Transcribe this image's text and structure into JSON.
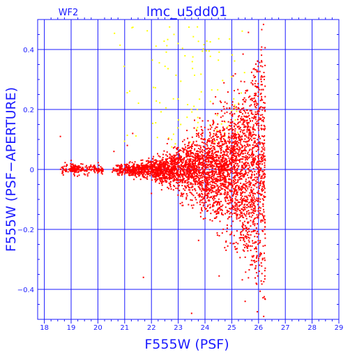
{
  "chart_data": {
    "type": "scatter",
    "title": "lmc_u5dd01",
    "subtitle": "WF2",
    "xlabel": "F555W (PSF)",
    "ylabel": "F555W (PSF−APERTURE)",
    "xlim": [
      17.75,
      29
    ],
    "ylim": [
      -0.5,
      0.5
    ],
    "x_ticks": [
      18,
      19,
      20,
      21,
      22,
      23,
      24,
      25,
      26,
      27,
      28,
      29
    ],
    "x_tick_labels": [
      "18",
      "19",
      "20",
      "21",
      "22",
      "23",
      "24",
      "25",
      "26",
      "27",
      "28",
      "29"
    ],
    "y_ticks": [
      -0.4,
      -0.2,
      0,
      0.2,
      0.4
    ],
    "y_tick_labels": [
      "−0.4",
      "−0.2",
      "0",
      "0.2",
      "0.4"
    ],
    "grid": true,
    "colors": {
      "axis": "#1a1aff",
      "stars": "#ff0000",
      "rejected": "#ffff00"
    },
    "series": [
      {
        "color": "#ff0000",
        "x_range": [
          18.6,
          26.3
        ],
        "y_center": 0.0,
        "scatter_growth": "increasing with magnitude",
        "cutoff_magnitude": 26.25
      },
      {
        "color": "#ffff00",
        "x_range": [
          20.3,
          25.5
        ],
        "y_range": [
          0.05,
          0.48
        ]
      }
    ]
  }
}
